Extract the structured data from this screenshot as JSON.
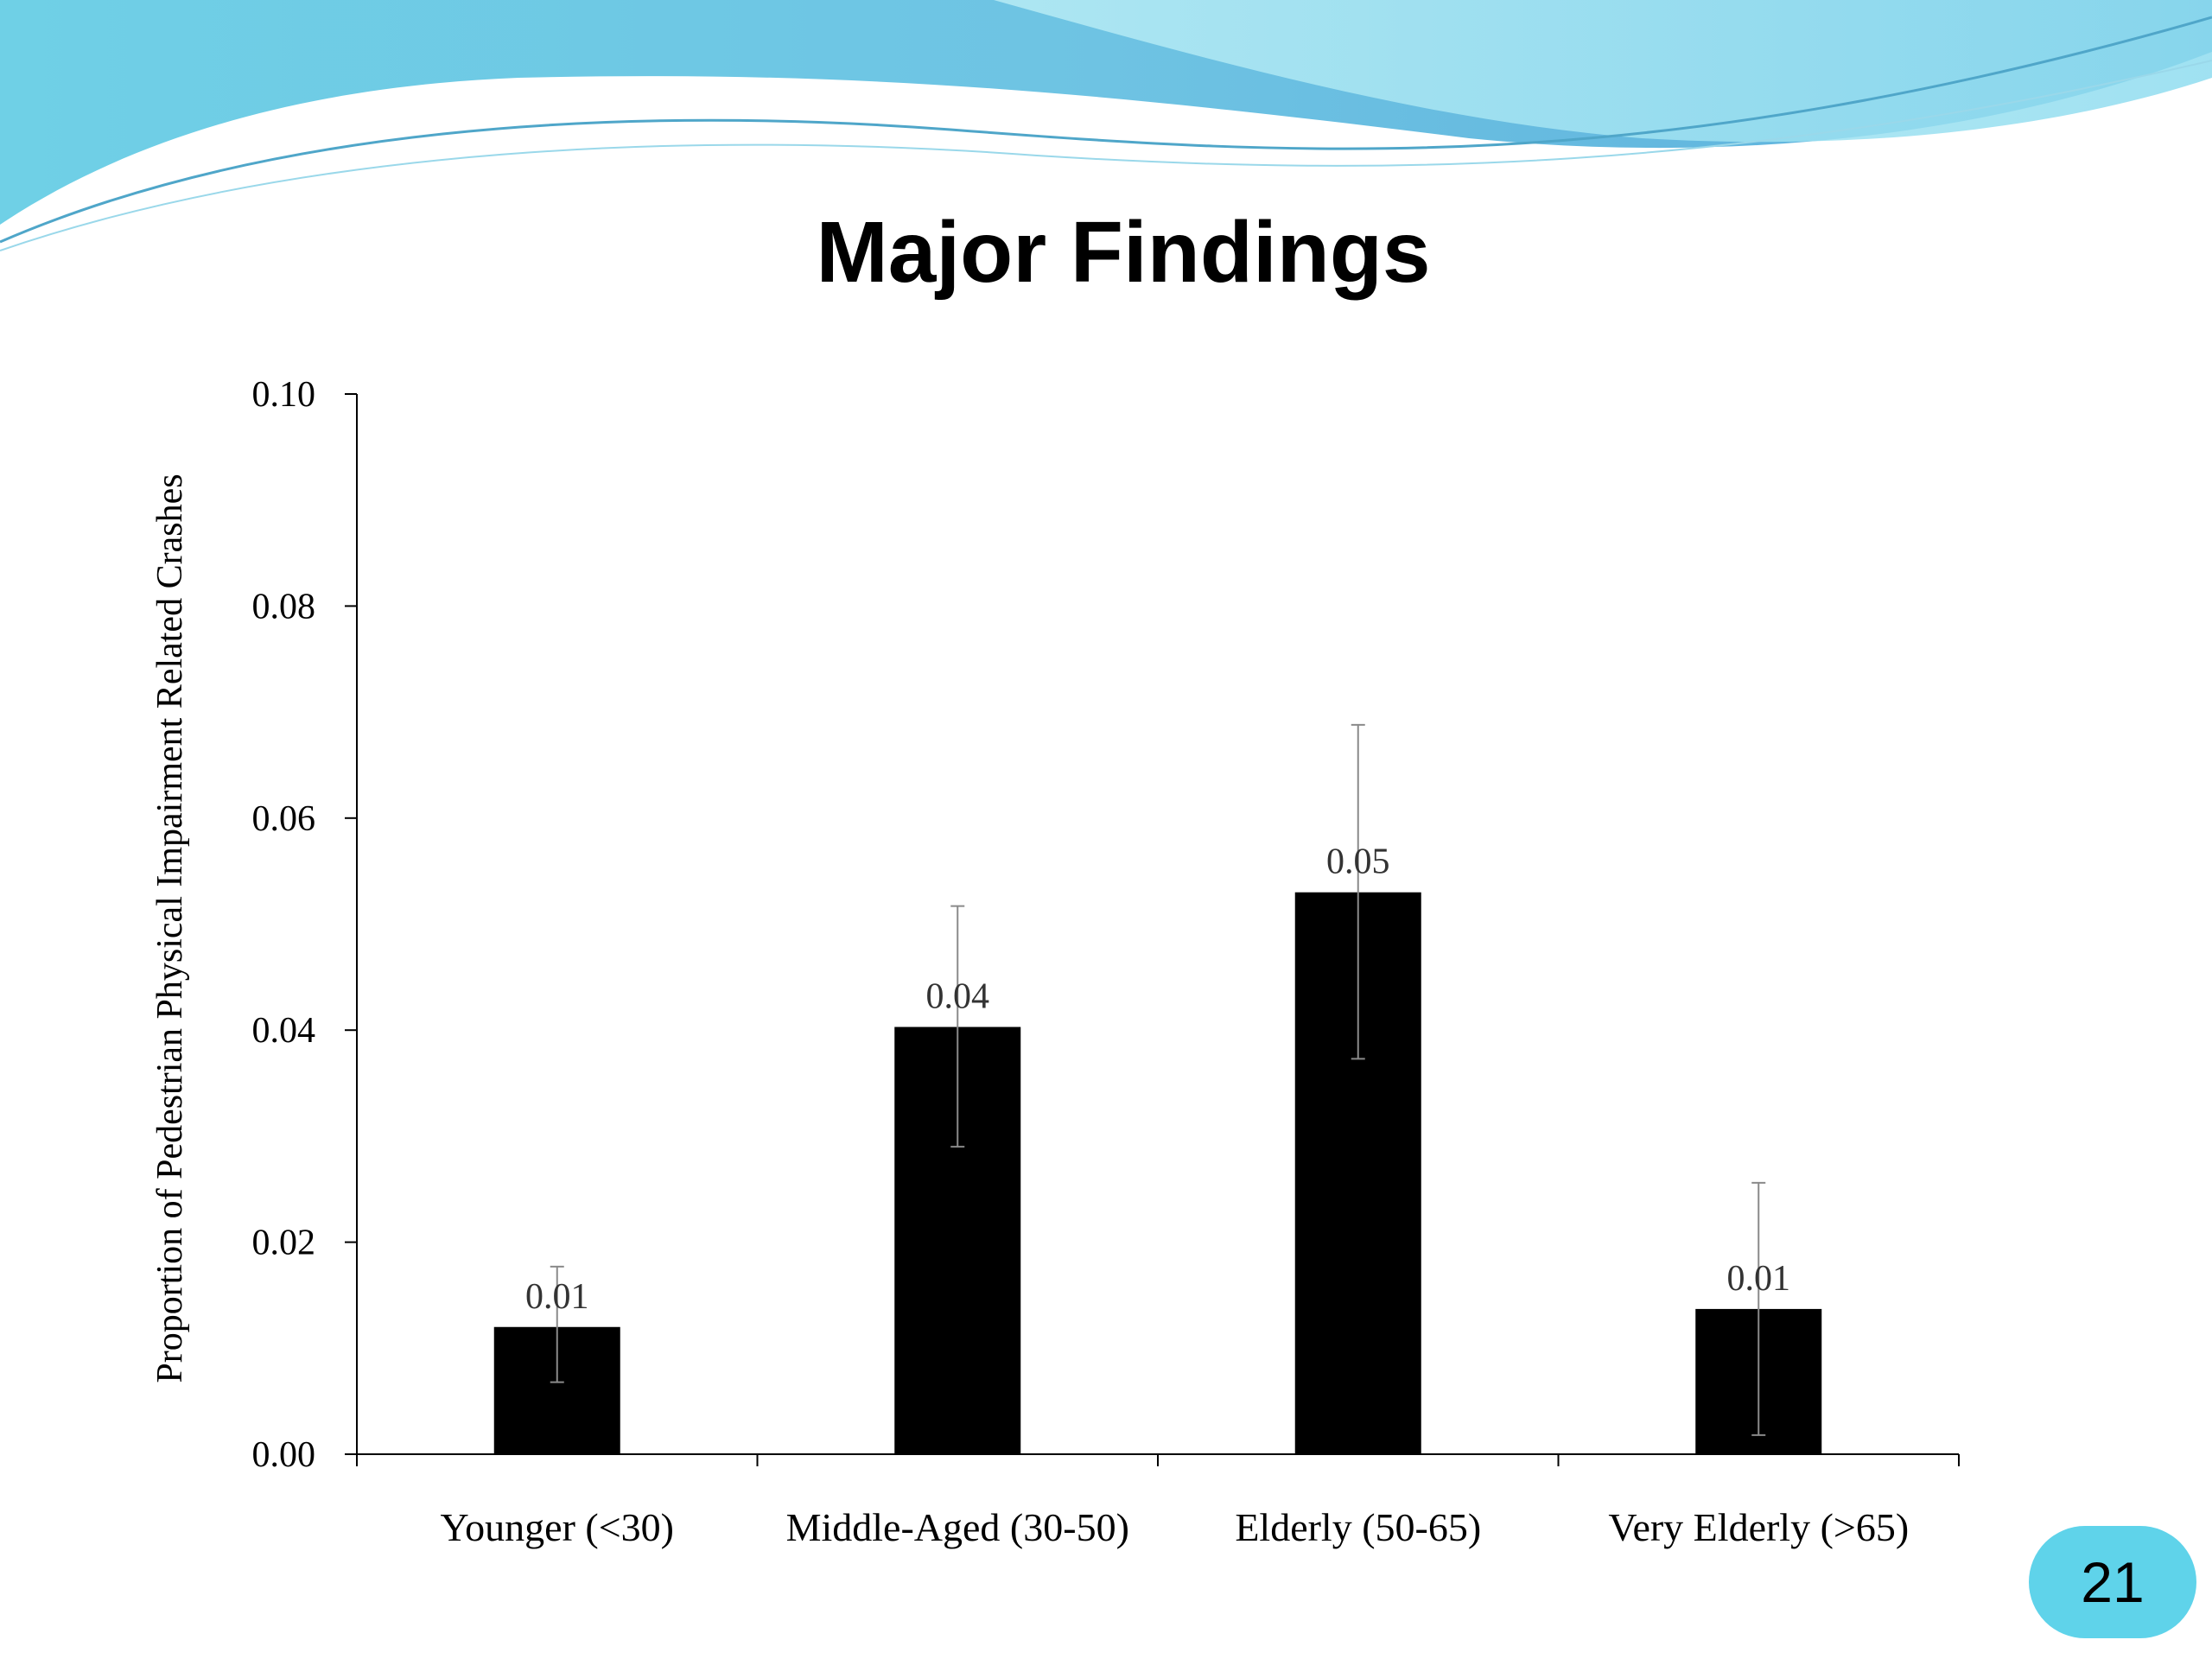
{
  "slide": {
    "title": "Major Findings",
    "page_number": "21",
    "colors": {
      "wave_dark": "#5bb8dc",
      "wave_light": "#7fd6ea",
      "badge": "#5fd3ea"
    }
  },
  "chart_data": {
    "type": "bar",
    "title": "",
    "ylabel": "Proportion of Pedestrian Physical Impairment Related Crashes",
    "xlabel": "",
    "categories": [
      "Younger (<30)",
      "Middle-Aged (30-50)",
      "Elderly (50-65)",
      "Very Elderly (>65)"
    ],
    "values": [
      0.012,
      0.0403,
      0.053,
      0.0137
    ],
    "data_labels": [
      "0.01",
      "0.04",
      "0.05",
      "0.01"
    ],
    "error_low": [
      0.0068,
      0.029,
      0.0373,
      0.0018
    ],
    "error_high": [
      0.0177,
      0.0517,
      0.0688,
      0.0256
    ],
    "ylim": [
      0,
      0.1
    ],
    "yticks": [
      "0.00",
      "0.02",
      "0.04",
      "0.06",
      "0.08",
      "0.10"
    ],
    "ytick_values": [
      0,
      0.02,
      0.04,
      0.06,
      0.08,
      0.1
    ],
    "grid": false,
    "legend": "none",
    "bar_color": "#000000"
  }
}
